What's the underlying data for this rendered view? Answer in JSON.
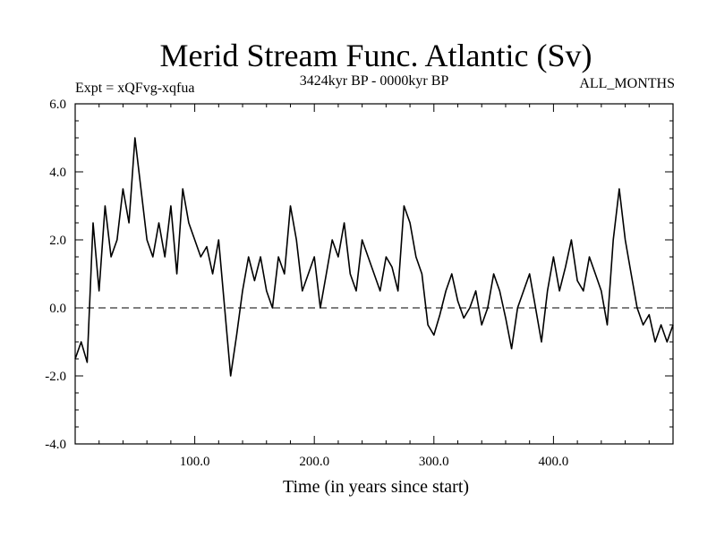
{
  "chart_data": {
    "type": "line",
    "title": "Merid Stream Func. Atlantic (Sv)",
    "subtitle_left": "Expt = xQFvg-xqfua",
    "subtitle_center": "3424kyr BP - 0000kyr BP",
    "subtitle_right": "ALL_MONTHS",
    "xlabel": "Time (in years since start)",
    "ylabel": "",
    "xlim": [
      0,
      500
    ],
    "ylim": [
      -4,
      6
    ],
    "x_ticks": [
      100,
      200,
      300,
      400
    ],
    "x_tick_labels": [
      "100.0",
      "200.0",
      "300.0",
      "400.0"
    ],
    "y_ticks": [
      -4,
      -2,
      0,
      2,
      4,
      6
    ],
    "y_tick_labels": [
      "-4.0",
      "-2.0",
      "0.0",
      "2.0",
      "4.0",
      "6.0"
    ],
    "zero_line": "dashed",
    "grid": false,
    "series": [
      {
        "name": "Merid Stream Func. Atlantic",
        "x": [
          0,
          5,
          10,
          15,
          20,
          25,
          30,
          35,
          40,
          45,
          50,
          55,
          60,
          65,
          70,
          75,
          80,
          85,
          90,
          95,
          100,
          105,
          110,
          115,
          120,
          125,
          130,
          135,
          140,
          145,
          150,
          155,
          160,
          165,
          170,
          175,
          180,
          185,
          190,
          195,
          200,
          205,
          210,
          215,
          220,
          225,
          230,
          235,
          240,
          245,
          250,
          255,
          260,
          265,
          270,
          275,
          280,
          285,
          290,
          295,
          300,
          305,
          310,
          315,
          320,
          325,
          330,
          335,
          340,
          345,
          350,
          355,
          360,
          365,
          370,
          375,
          380,
          385,
          390,
          395,
          400,
          405,
          410,
          415,
          420,
          425,
          430,
          435,
          440,
          445,
          450,
          455,
          460,
          465,
          470,
          475,
          480,
          485,
          490,
          495,
          500
        ],
        "y": [
          -1.5,
          -1.0,
          -1.6,
          2.5,
          0.5,
          3.0,
          1.5,
          2.0,
          3.5,
          2.5,
          5.0,
          3.5,
          2.0,
          1.5,
          2.5,
          1.5,
          3.0,
          1.0,
          3.5,
          2.5,
          2.0,
          1.5,
          1.8,
          1.0,
          2.0,
          0.0,
          -2.0,
          -0.8,
          0.5,
          1.5,
          0.8,
          1.5,
          0.5,
          0.0,
          1.5,
          1.0,
          3.0,
          2.0,
          0.5,
          1.0,
          1.5,
          0.0,
          1.0,
          2.0,
          1.5,
          2.5,
          1.0,
          0.5,
          2.0,
          1.5,
          1.0,
          0.5,
          1.5,
          1.2,
          0.5,
          3.0,
          2.5,
          1.5,
          1.0,
          -0.5,
          -0.8,
          -0.2,
          0.5,
          1.0,
          0.2,
          -0.3,
          0.0,
          0.5,
          -0.5,
          0.0,
          1.0,
          0.5,
          -0.3,
          -1.2,
          0.0,
          0.5,
          1.0,
          0.0,
          -1.0,
          0.5,
          1.5,
          0.5,
          1.2,
          2.0,
          0.8,
          0.5,
          1.5,
          1.0,
          0.5,
          -0.5,
          2.0,
          3.5,
          2.0,
          1.0,
          0.0,
          -0.5,
          -0.2,
          -1.0,
          -0.5,
          -1.0,
          -0.5
        ]
      }
    ]
  }
}
